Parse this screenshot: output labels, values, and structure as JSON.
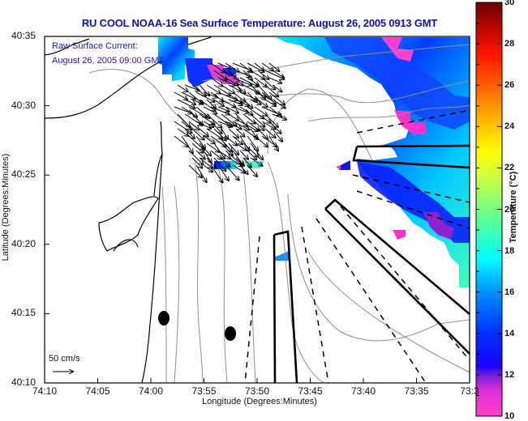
{
  "title": "RU COOL  NOAA-16  Sea Surface Temperature:  August 26, 2005 0913 GMT",
  "annotations": {
    "line1": "Raw Surface Current:",
    "line2": "August 26, 2005 09:00 GMT",
    "scale_label": "50 cm/s"
  },
  "axes": {
    "xlabel": "Longitude (Degrees:Minutes)",
    "ylabel": "Latitude (Degrees:Minutes)",
    "x_ticks": [
      "74:10",
      "74:05",
      "74:00",
      "73:55",
      "73:50",
      "73:45",
      "73:40",
      "73:35",
      "73:3"
    ],
    "y_ticks": [
      "40:35",
      "40:30",
      "40:25",
      "40:20",
      "40:15",
      "40:10"
    ]
  },
  "colorbar": {
    "label": "Temperature (°C)",
    "min": 10,
    "max": 30,
    "ticks": [
      "30",
      "28",
      "26",
      "24",
      "22",
      "20",
      "18",
      "16",
      "14",
      "12",
      "10"
    ],
    "stops": [
      "#ff3fc8",
      "#c020d0",
      "#3a10e0",
      "#0000ff",
      "#0a5cff",
      "#00c0ff",
      "#00ffff",
      "#40ffa0",
      "#a0ff60",
      "#f0ff20",
      "#ffc000",
      "#ff8000",
      "#ff3000",
      "#d00000",
      "#800000"
    ]
  },
  "map_features": {
    "buoy_markers": 2,
    "current_vectors": "dense field NW-to-SE flow near harbor entrance",
    "sst_range_shown": "approximately 11–20 °C"
  }
}
